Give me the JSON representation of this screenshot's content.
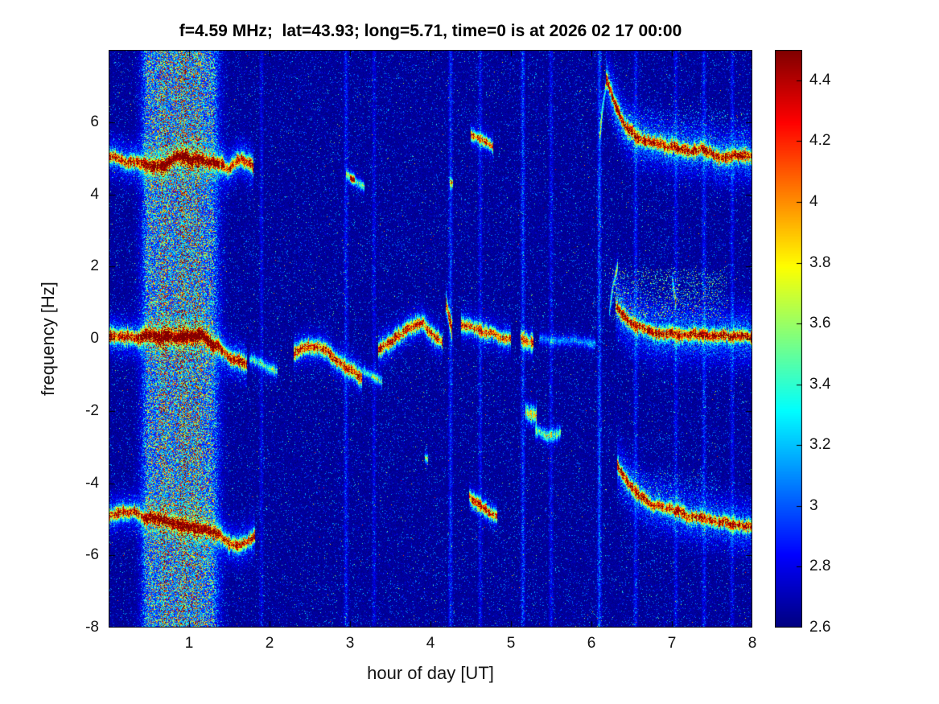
{
  "figure": {
    "background": "#ffffff"
  },
  "chart_data": {
    "type": "heatmap",
    "subtype": "spectrogram",
    "title": "f=4.59 MHz;  lat=43.93; long=5.71, time=0 is at 2026 02 17 00:00",
    "xlabel": "hour of day [UT]",
    "ylabel": "frequency [Hz]",
    "xlim": [
      0,
      8
    ],
    "ylim": [
      -8,
      8
    ],
    "xticks": [
      1,
      2,
      3,
      4,
      5,
      6,
      7,
      8
    ],
    "yticks": [
      6,
      4,
      2,
      0,
      -2,
      -4,
      -6,
      -8
    ],
    "colormap": "jet",
    "colorbar": {
      "min": 2.6,
      "max": 4.5,
      "ticks": [
        4.4,
        4.2,
        4,
        3.8,
        3.6,
        3.4,
        3.2,
        3,
        2.8,
        2.6
      ]
    },
    "background_level": 2.6,
    "features": {
      "vertical_band": {
        "x_center": 0.9,
        "x_width": 0.42,
        "amp": 0.95,
        "subbands": [
          {
            "x": 0.5,
            "sigma": 0.05,
            "amp": 0.45
          },
          {
            "x": 0.68,
            "sigma": 0.04,
            "amp": 0.4
          },
          {
            "x": 0.93,
            "sigma": 0.05,
            "amp": 0.5
          },
          {
            "x": 1.1,
            "sigma": 0.04,
            "amp": 0.4
          },
          {
            "x": 1.28,
            "sigma": 0.05,
            "amp": 0.3
          }
        ]
      },
      "vertical_streaks": [
        {
          "x": 1.9,
          "amp": 0.2,
          "sigma": 0.016
        },
        {
          "x": 2.95,
          "amp": 0.3,
          "sigma": 0.016
        },
        {
          "x": 3.3,
          "amp": 0.2,
          "sigma": 0.016
        },
        {
          "x": 4.25,
          "amp": 0.35,
          "sigma": 0.016
        },
        {
          "x": 4.62,
          "amp": 0.25,
          "sigma": 0.016
        },
        {
          "x": 5.15,
          "amp": 0.4,
          "sigma": 0.016
        },
        {
          "x": 5.5,
          "amp": 0.25,
          "sigma": 0.016
        },
        {
          "x": 6.1,
          "amp": 0.45,
          "sigma": 0.016
        },
        {
          "x": 6.55,
          "amp": 0.3,
          "sigma": 0.016
        },
        {
          "x": 7.05,
          "amp": 0.25,
          "sigma": 0.016
        },
        {
          "x": 7.4,
          "amp": 0.3,
          "sigma": 0.016
        },
        {
          "x": 7.75,
          "amp": 0.25,
          "sigma": 0.016
        }
      ],
      "clouds": [
        {
          "x": [
            6.2,
            7.7
          ],
          "y": [
            0.45,
            2.0
          ],
          "amp": 0.85,
          "density": 0.16
        },
        {
          "x": [
            6.25,
            8.0
          ],
          "y": [
            5.3,
            6.5
          ],
          "amp": 0.55,
          "density": 0.08
        },
        {
          "x": [
            6.3,
            7.6
          ],
          "y": [
            -4.55,
            -3.55
          ],
          "amp": 0.55,
          "density": 0.1
        }
      ],
      "traces": [
        {
          "name": "left-band-5hz",
          "points": [
            [
              0.0,
              5.05
            ],
            [
              0.3,
              5.0
            ],
            [
              0.6,
              4.92
            ],
            [
              0.9,
              5.0
            ],
            [
              1.15,
              4.95
            ],
            [
              1.35,
              4.75
            ],
            [
              1.5,
              4.55
            ],
            [
              1.65,
              4.78
            ],
            [
              1.8,
              4.6
            ]
          ],
          "amp": 1.85,
          "core": 0.1,
          "halo": 0.6,
          "halo_sigma": 0.35,
          "jitter": 0.07
        },
        {
          "name": "left-band-0hz",
          "points": [
            [
              0.0,
              0.08
            ],
            [
              0.45,
              0.02
            ],
            [
              0.85,
              0.0
            ],
            [
              1.15,
              -0.1
            ],
            [
              1.3,
              -0.3
            ],
            [
              1.5,
              -0.5
            ],
            [
              1.72,
              -0.55
            ]
          ],
          "amp": 1.9,
          "core": 0.11,
          "halo": 0.6,
          "halo_sigma": 0.35,
          "jitter": 0.06
        },
        {
          "name": "left-band-0hz-tail",
          "points": [
            [
              1.75,
              -0.6
            ],
            [
              1.95,
              -0.75
            ],
            [
              2.1,
              -0.9
            ]
          ],
          "amp": 0.75,
          "core": 0.08,
          "halo": 0.2,
          "halo_sigma": 0.25,
          "jitter": 0.05
        },
        {
          "name": "left-band-neg5hz",
          "points": [
            [
              0.0,
              -4.85
            ],
            [
              0.45,
              -4.95
            ],
            [
              0.85,
              -4.9
            ],
            [
              1.15,
              -5.05
            ],
            [
              1.35,
              -5.15
            ],
            [
              1.5,
              -5.45
            ],
            [
              1.65,
              -5.5
            ],
            [
              1.82,
              -5.35
            ]
          ],
          "amp": 1.8,
          "core": 0.1,
          "halo": 0.55,
          "halo_sigma": 0.35,
          "jitter": 0.07
        },
        {
          "name": "mid-dip",
          "points": [
            [
              2.3,
              -0.4
            ],
            [
              2.5,
              -0.12
            ],
            [
              2.68,
              -0.1
            ],
            [
              2.85,
              -0.4
            ],
            [
              3.0,
              -0.65
            ],
            [
              3.15,
              -0.85
            ]
          ],
          "amp": 1.75,
          "core": 0.11,
          "halo": 0.5,
          "halo_sigma": 0.3,
          "jitter": 0.06
        },
        {
          "name": "mid-dip-tail",
          "points": [
            [
              3.15,
              -0.9
            ],
            [
              3.4,
              -1.05
            ]
          ],
          "amp": 0.7,
          "core": 0.08,
          "halo": 0.2,
          "halo_sigma": 0.2,
          "jitter": 0.05
        },
        {
          "name": "mid-arc",
          "points": [
            [
              3.35,
              -0.3
            ],
            [
              3.55,
              0.1
            ],
            [
              3.72,
              0.42
            ],
            [
              3.9,
              0.45
            ],
            [
              4.05,
              0.1
            ],
            [
              4.15,
              -0.1
            ]
          ],
          "amp": 1.65,
          "core": 0.11,
          "halo": 0.5,
          "halo_sigma": 0.3,
          "jitter": 0.06
        },
        {
          "name": "streak-4p2",
          "points": [
            [
              4.19,
              1.05
            ],
            [
              4.23,
              0.6
            ],
            [
              4.27,
              0.22
            ]
          ],
          "amp": 1.8,
          "core": 0.13,
          "halo": 0.4,
          "halo_sigma": 0.3,
          "jitter": 0.03
        },
        {
          "name": "seg-4p4",
          "points": [
            [
              4.38,
              0.4
            ],
            [
              4.6,
              0.35
            ],
            [
              4.8,
              0.3
            ],
            [
              5.0,
              0.22
            ]
          ],
          "amp": 1.6,
          "core": 0.1,
          "halo": 0.45,
          "halo_sigma": 0.3,
          "jitter": 0.06
        },
        {
          "name": "blob-5p2",
          "points": [
            [
              5.12,
              0.02
            ],
            [
              5.28,
              -0.06
            ]
          ],
          "amp": 1.5,
          "core": 0.12,
          "halo": 0.35,
          "halo_sigma": 0.25,
          "jitter": 0.04
        },
        {
          "name": "faint-0hz-right",
          "points": [
            [
              5.35,
              0.0
            ],
            [
              5.7,
              -0.02
            ],
            [
              6.05,
              0.0
            ]
          ],
          "amp": 0.45,
          "core": 0.08,
          "halo": 0.12,
          "halo_sigma": 0.2,
          "jitter": 0.05
        },
        {
          "name": "right-top-curve",
          "points": [
            [
              6.18,
              7.25
            ],
            [
              6.28,
              6.55
            ],
            [
              6.42,
              6.0
            ],
            [
              6.58,
              5.7
            ],
            [
              6.78,
              5.5
            ],
            [
              7.0,
              5.38
            ],
            [
              7.3,
              5.25
            ],
            [
              7.6,
              5.15
            ],
            [
              8.0,
              5.05
            ]
          ],
          "amp": 1.85,
          "core": 0.1,
          "halo": 0.7,
          "halo_sigma": 0.45,
          "jitter": 0.06
        },
        {
          "name": "right-top-rise",
          "points": [
            [
              6.1,
              5.5
            ],
            [
              6.14,
              6.4
            ],
            [
              6.19,
              7.15
            ]
          ],
          "amp": 0.85,
          "core": 0.07,
          "halo": 0.25,
          "halo_sigma": 0.25,
          "jitter": 0.03
        },
        {
          "name": "right-mid-curve",
          "points": [
            [
              6.3,
              0.95
            ],
            [
              6.45,
              0.6
            ],
            [
              6.65,
              0.45
            ],
            [
              6.9,
              0.35
            ],
            [
              7.2,
              0.3
            ],
            [
              7.55,
              0.2
            ],
            [
              8.0,
              0.12
            ]
          ],
          "amp": 1.8,
          "core": 0.1,
          "halo": 0.65,
          "halo_sigma": 0.5,
          "jitter": 0.06
        },
        {
          "name": "right-mid-rise",
          "points": [
            [
              6.22,
              0.7
            ],
            [
              6.27,
              1.5
            ],
            [
              6.33,
              2.05
            ]
          ],
          "amp": 0.8,
          "core": 0.08,
          "halo": 0.25,
          "halo_sigma": 0.25,
          "jitter": 0.03
        },
        {
          "name": "right-mid-spike",
          "points": [
            [
              7.0,
              1.7
            ],
            [
              7.05,
              1.0
            ]
          ],
          "amp": 0.85,
          "core": 0.09,
          "halo": 0.2,
          "halo_sigma": 0.2,
          "jitter": 0.03
        },
        {
          "name": "right-bottom-curve",
          "points": [
            [
              6.32,
              -3.5
            ],
            [
              6.45,
              -3.95
            ],
            [
              6.6,
              -4.3
            ],
            [
              6.82,
              -4.55
            ],
            [
              7.08,
              -4.75
            ],
            [
              7.4,
              -4.9
            ],
            [
              7.75,
              -5.0
            ],
            [
              8.0,
              -5.05
            ]
          ],
          "amp": 1.75,
          "core": 0.1,
          "halo": 0.6,
          "halo_sigma": 0.45,
          "jitter": 0.06
        },
        {
          "name": "dash-top-4p6",
          "points": [
            [
              4.5,
              5.65
            ],
            [
              4.65,
              5.5
            ],
            [
              4.78,
              5.35
            ]
          ],
          "amp": 1.6,
          "core": 0.09,
          "halo": 0.35,
          "halo_sigma": 0.25,
          "jitter": 0.04
        },
        {
          "name": "dash-top-3",
          "points": [
            [
              2.95,
              4.55
            ],
            [
              3.08,
              4.38
            ],
            [
              3.18,
              4.25
            ]
          ],
          "amp": 0.8,
          "core": 0.07,
          "halo": 0.2,
          "halo_sigma": 0.2,
          "jitter": 0.04
        },
        {
          "name": "dot-top-3",
          "points": [
            [
              3.0,
              4.45
            ],
            [
              3.06,
              4.4
            ]
          ],
          "amp": 1.5,
          "core": 0.07,
          "halo": 0.15,
          "halo_sigma": 0.15,
          "jitter": 0.02
        },
        {
          "name": "dash-bot-4p6",
          "points": [
            [
              4.48,
              -4.35
            ],
            [
              4.62,
              -4.62
            ],
            [
              4.75,
              -4.88
            ],
            [
              4.83,
              -5.02
            ]
          ],
          "amp": 1.65,
          "core": 0.1,
          "halo": 0.35,
          "halo_sigma": 0.25,
          "jitter": 0.04
        },
        {
          "name": "blob-neg2",
          "points": [
            [
              5.18,
              -2.0
            ],
            [
              5.32,
              -2.18
            ]
          ],
          "amp": 1.0,
          "core": 0.14,
          "halo": 0.25,
          "halo_sigma": 0.25,
          "jitter": 0.04
        },
        {
          "name": "arc-neg2p6",
          "points": [
            [
              5.3,
              -2.55
            ],
            [
              5.45,
              -2.72
            ],
            [
              5.62,
              -2.6
            ]
          ],
          "amp": 0.85,
          "core": 0.1,
          "halo": 0.2,
          "halo_sigma": 0.2,
          "jitter": 0.04
        },
        {
          "name": "dot-4p25-top",
          "points": [
            [
              4.24,
              4.34
            ],
            [
              4.28,
              4.28
            ]
          ],
          "amp": 1.55,
          "core": 0.07,
          "halo": 0.15,
          "halo_sigma": 0.15,
          "jitter": 0.02
        },
        {
          "name": "speck-3p95-bot",
          "points": [
            [
              3.93,
              -3.3
            ],
            [
              3.97,
              -3.35
            ]
          ],
          "amp": 1.3,
          "core": 0.07,
          "halo": 0.12,
          "halo_sigma": 0.15,
          "jitter": 0.02
        }
      ]
    }
  }
}
